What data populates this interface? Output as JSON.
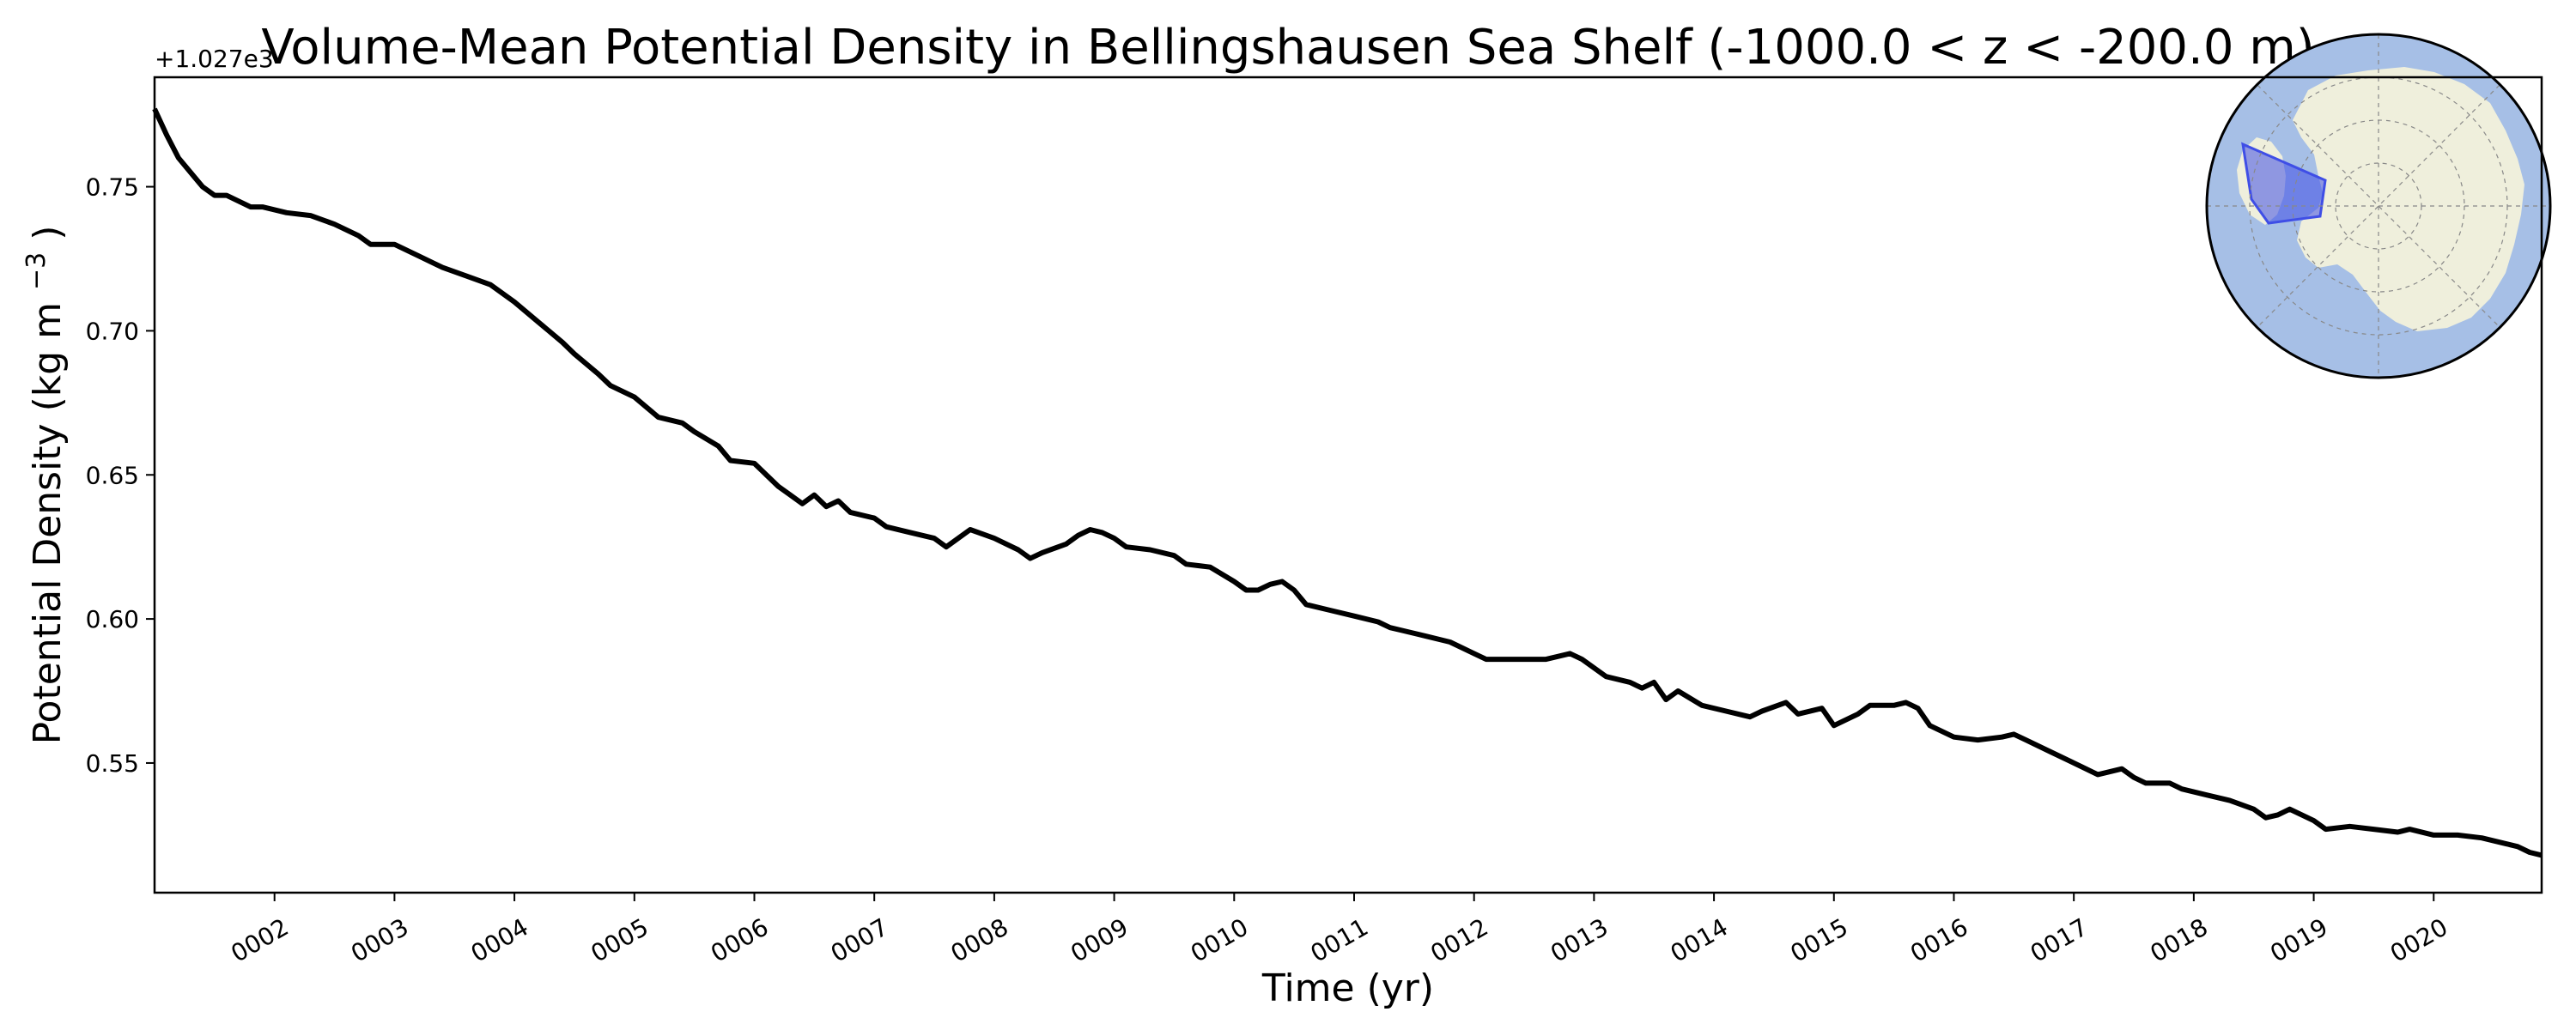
{
  "chart_data": {
    "type": "line",
    "title": "Volume-Mean Potential Density in Bellingshausen Sea Shelf (-1000.0 < z < -200.0 m)",
    "xlabel": "Time (yr)",
    "ylabel_main": "Potential Density (kg m",
    "ylabel_sup": "−3",
    "ylabel_close": ")",
    "offset_text": "+1.027e3",
    "xlim": [
      1.0,
      20.9
    ],
    "ylim": [
      0.505,
      0.788
    ],
    "x_ticks": [
      {
        "value": 2,
        "label": "0002"
      },
      {
        "value": 3,
        "label": "0003"
      },
      {
        "value": 4,
        "label": "0004"
      },
      {
        "value": 5,
        "label": "0005"
      },
      {
        "value": 6,
        "label": "0006"
      },
      {
        "value": 7,
        "label": "0007"
      },
      {
        "value": 8,
        "label": "0008"
      },
      {
        "value": 9,
        "label": "0009"
      },
      {
        "value": 10,
        "label": "0010"
      },
      {
        "value": 11,
        "label": "0011"
      },
      {
        "value": 12,
        "label": "0012"
      },
      {
        "value": 13,
        "label": "0013"
      },
      {
        "value": 14,
        "label": "0014"
      },
      {
        "value": 15,
        "label": "0015"
      },
      {
        "value": 16,
        "label": "0016"
      },
      {
        "value": 17,
        "label": "0017"
      },
      {
        "value": 18,
        "label": "0018"
      },
      {
        "value": 19,
        "label": "0019"
      },
      {
        "value": 20,
        "label": "0020"
      }
    ],
    "y_ticks": [
      {
        "value": 0.55,
        "label": "0.55"
      },
      {
        "value": 0.6,
        "label": "0.60"
      },
      {
        "value": 0.65,
        "label": "0.65"
      },
      {
        "value": 0.7,
        "label": "0.70"
      },
      {
        "value": 0.75,
        "label": "0.75"
      }
    ],
    "series": [
      {
        "name": "Potential Density",
        "color": "#000000",
        "points": [
          [
            1.0,
            0.777
          ],
          [
            1.1,
            0.768
          ],
          [
            1.2,
            0.76
          ],
          [
            1.3,
            0.755
          ],
          [
            1.4,
            0.75
          ],
          [
            1.5,
            0.747
          ],
          [
            1.6,
            0.747
          ],
          [
            1.7,
            0.745
          ],
          [
            1.8,
            0.743
          ],
          [
            1.9,
            0.743
          ],
          [
            2.0,
            0.742
          ],
          [
            2.1,
            0.741
          ],
          [
            2.3,
            0.74
          ],
          [
            2.5,
            0.737
          ],
          [
            2.7,
            0.733
          ],
          [
            2.8,
            0.73
          ],
          [
            3.0,
            0.73
          ],
          [
            3.2,
            0.726
          ],
          [
            3.4,
            0.722
          ],
          [
            3.6,
            0.719
          ],
          [
            3.8,
            0.716
          ],
          [
            4.0,
            0.71
          ],
          [
            4.2,
            0.703
          ],
          [
            4.4,
            0.696
          ],
          [
            4.5,
            0.692
          ],
          [
            4.7,
            0.685
          ],
          [
            4.8,
            0.681
          ],
          [
            5.0,
            0.677
          ],
          [
            5.2,
            0.67
          ],
          [
            5.4,
            0.668
          ],
          [
            5.5,
            0.665
          ],
          [
            5.7,
            0.66
          ],
          [
            5.8,
            0.655
          ],
          [
            6.0,
            0.654
          ],
          [
            6.1,
            0.65
          ],
          [
            6.2,
            0.646
          ],
          [
            6.3,
            0.643
          ],
          [
            6.4,
            0.64
          ],
          [
            6.5,
            0.643
          ],
          [
            6.6,
            0.639
          ],
          [
            6.7,
            0.641
          ],
          [
            6.8,
            0.637
          ],
          [
            7.0,
            0.635
          ],
          [
            7.1,
            0.632
          ],
          [
            7.3,
            0.63
          ],
          [
            7.5,
            0.628
          ],
          [
            7.6,
            0.625
          ],
          [
            7.7,
            0.628
          ],
          [
            7.8,
            0.631
          ],
          [
            8.0,
            0.628
          ],
          [
            8.2,
            0.624
          ],
          [
            8.3,
            0.621
          ],
          [
            8.4,
            0.623
          ],
          [
            8.6,
            0.626
          ],
          [
            8.7,
            0.629
          ],
          [
            8.8,
            0.631
          ],
          [
            8.9,
            0.63
          ],
          [
            9.0,
            0.628
          ],
          [
            9.1,
            0.625
          ],
          [
            9.3,
            0.624
          ],
          [
            9.5,
            0.622
          ],
          [
            9.6,
            0.619
          ],
          [
            9.8,
            0.618
          ],
          [
            10.0,
            0.613
          ],
          [
            10.1,
            0.61
          ],
          [
            10.2,
            0.61
          ],
          [
            10.3,
            0.612
          ],
          [
            10.4,
            0.613
          ],
          [
            10.5,
            0.61
          ],
          [
            10.6,
            0.605
          ],
          [
            10.8,
            0.603
          ],
          [
            11.0,
            0.601
          ],
          [
            11.2,
            0.599
          ],
          [
            11.3,
            0.597
          ],
          [
            11.4,
            0.596
          ],
          [
            11.6,
            0.594
          ],
          [
            11.8,
            0.592
          ],
          [
            12.0,
            0.588
          ],
          [
            12.1,
            0.586
          ],
          [
            12.3,
            0.586
          ],
          [
            12.5,
            0.586
          ],
          [
            12.6,
            0.586
          ],
          [
            12.8,
            0.588
          ],
          [
            12.9,
            0.586
          ],
          [
            13.1,
            0.58
          ],
          [
            13.3,
            0.578
          ],
          [
            13.4,
            0.576
          ],
          [
            13.5,
            0.578
          ],
          [
            13.6,
            0.572
          ],
          [
            13.7,
            0.575
          ],
          [
            13.9,
            0.57
          ],
          [
            14.1,
            0.568
          ],
          [
            14.3,
            0.566
          ],
          [
            14.4,
            0.568
          ],
          [
            14.6,
            0.571
          ],
          [
            14.7,
            0.567
          ],
          [
            14.9,
            0.569
          ],
          [
            15.0,
            0.563
          ],
          [
            15.2,
            0.567
          ],
          [
            15.3,
            0.57
          ],
          [
            15.5,
            0.57
          ],
          [
            15.6,
            0.571
          ],
          [
            15.7,
            0.569
          ],
          [
            15.8,
            0.563
          ],
          [
            16.0,
            0.559
          ],
          [
            16.2,
            0.558
          ],
          [
            16.4,
            0.559
          ],
          [
            16.5,
            0.56
          ],
          [
            16.6,
            0.558
          ],
          [
            16.8,
            0.554
          ],
          [
            17.0,
            0.55
          ],
          [
            17.2,
            0.546
          ],
          [
            17.4,
            0.548
          ],
          [
            17.5,
            0.545
          ],
          [
            17.6,
            0.543
          ],
          [
            17.8,
            0.543
          ],
          [
            17.9,
            0.541
          ],
          [
            18.1,
            0.539
          ],
          [
            18.3,
            0.537
          ],
          [
            18.5,
            0.534
          ],
          [
            18.6,
            0.531
          ],
          [
            18.7,
            0.532
          ],
          [
            18.8,
            0.534
          ],
          [
            19.0,
            0.53
          ],
          [
            19.1,
            0.527
          ],
          [
            19.3,
            0.528
          ],
          [
            19.5,
            0.527
          ],
          [
            19.7,
            0.526
          ],
          [
            19.8,
            0.527
          ],
          [
            20.0,
            0.525
          ],
          [
            20.2,
            0.525
          ],
          [
            20.4,
            0.524
          ],
          [
            20.5,
            0.523
          ],
          [
            20.6,
            0.522
          ],
          [
            20.7,
            0.521
          ],
          [
            20.8,
            0.519
          ],
          [
            20.9,
            0.518
          ]
        ]
      }
    ],
    "inset_map": {
      "region": "Bellingshausen Sea Shelf",
      "projection": "south polar stereographic",
      "ocean_color": "#a6bfe6",
      "land_color": "#efefdc",
      "region_color": "#3f4ee6"
    },
    "grid": false
  }
}
